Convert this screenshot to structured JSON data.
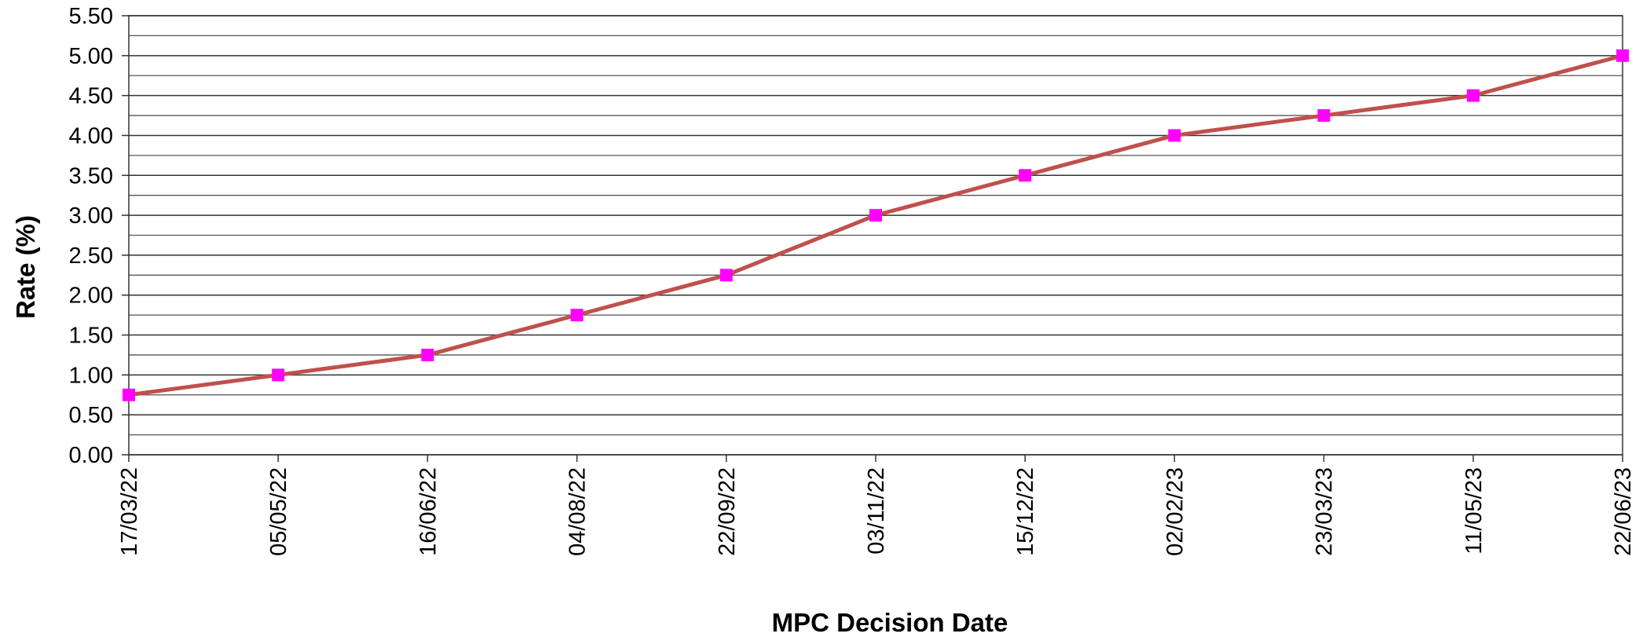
{
  "chart_data": {
    "type": "line",
    "x_label": "MPC Decision Date",
    "y_label": "Rate (%)",
    "categories": [
      "17/03/22",
      "05/05/22",
      "16/06/22",
      "04/08/22",
      "22/09/22",
      "03/11/22",
      "15/12/22",
      "02/02/23",
      "23/03/23",
      "11/05/23",
      "22/06/23"
    ],
    "series": [
      {
        "name": "Rate",
        "color": "#c0504d",
        "marker_color": "#ff00ff",
        "values": [
          0.75,
          1.0,
          1.25,
          1.75,
          2.25,
          3.0,
          3.5,
          4.0,
          4.25,
          4.5,
          5.0
        ]
      }
    ],
    "ylim": [
      0,
      5.5
    ],
    "yticks": [
      {
        "value": 0,
        "label": "0.00"
      },
      {
        "value": 0.5,
        "label": "0.50"
      },
      {
        "value": 1,
        "label": "1.00"
      },
      {
        "value": 1.5,
        "label": "1.50"
      },
      {
        "value": 2,
        "label": "2.00"
      },
      {
        "value": 2.5,
        "label": "2.50"
      },
      {
        "value": 3,
        "label": "3.00"
      },
      {
        "value": 3.5,
        "label": "3.50"
      },
      {
        "value": 4,
        "label": "4.00"
      },
      {
        "value": 4.5,
        "label": "4.50"
      },
      {
        "value": 5,
        "label": "5.00"
      },
      {
        "value": 5.5,
        "label": "5.50"
      }
    ],
    "minor_yticks": [
      0.25,
      0.75,
      1.25,
      1.75,
      2.25,
      2.75,
      3.25,
      3.75,
      4.25,
      4.75,
      5.25
    ],
    "grid": true
  }
}
